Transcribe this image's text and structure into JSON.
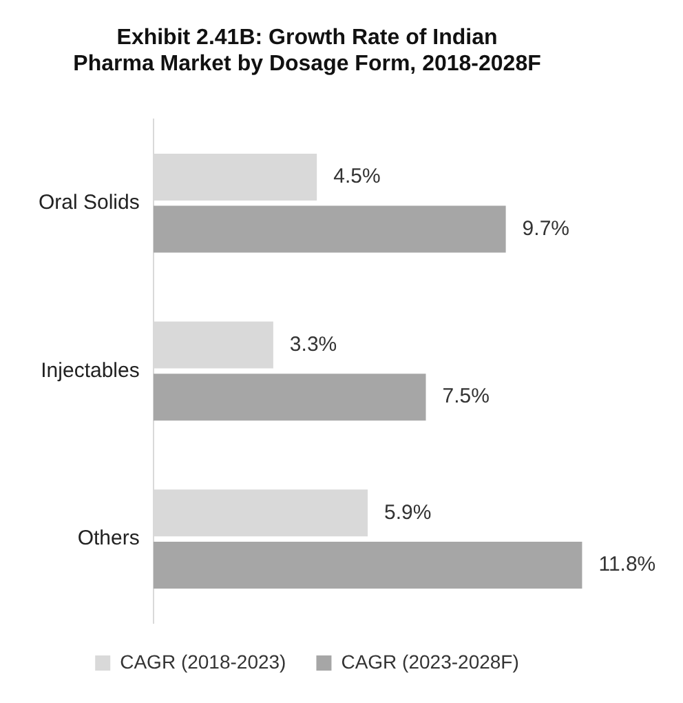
{
  "chart_data": {
    "type": "bar",
    "orientation": "horizontal",
    "title": "Exhibit 2.41B: Growth Rate of Indian Pharma Market by Dosage Form, 2018-2028F",
    "categories": [
      "Oral Solids",
      "Injectables",
      "Others"
    ],
    "series": [
      {
        "name": "CAGR (2018-2023)",
        "color": "#d9d9d9",
        "values": [
          4.5,
          3.3,
          5.9
        ],
        "value_labels": [
          "4.5%",
          "3.3%",
          "5.9%"
        ]
      },
      {
        "name": "CAGR (2023-2028F)",
        "color": "#a6a6a6",
        "values": [
          9.7,
          7.5,
          11.8
        ],
        "value_labels": [
          "9.7%",
          "7.5%",
          "11.8%"
        ]
      }
    ],
    "legend": "bottom"
  }
}
